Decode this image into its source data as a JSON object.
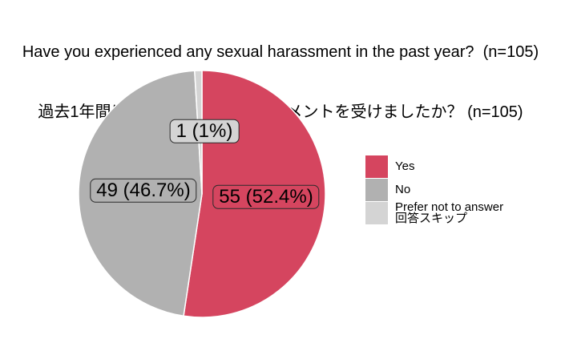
{
  "title": {
    "line1": "Have you experienced any sexual harassment in the past year?  (n=105)",
    "line2": "過去1年間にセクシュアル・ハラスメントを受けましたか？ (n=105)"
  },
  "chart_data": {
    "type": "pie",
    "title": "Have you experienced any sexual harassment in the past year? (n=105)",
    "title_jp": "過去1年間にセクシュアル・ハラスメントを受けましたか？ (n=105)",
    "total_n": 105,
    "start_angle_deg": 0,
    "direction": "clockwise",
    "legend_position": "right",
    "slices": [
      {
        "label": "Yes",
        "value": 55,
        "pct": 52.4,
        "pct_label": "55 (52.4%)",
        "color": "#d5455f"
      },
      {
        "label": "No",
        "value": 49,
        "pct": 46.7,
        "pct_label": "49 (46.7%)",
        "color": "#b1b1b1"
      },
      {
        "label": "Prefer not to answer",
        "label_jp": "回答スキップ",
        "value": 1,
        "pct": 1.0,
        "pct_label": "1 (1%)",
        "color": "#d4d4d4"
      }
    ]
  }
}
